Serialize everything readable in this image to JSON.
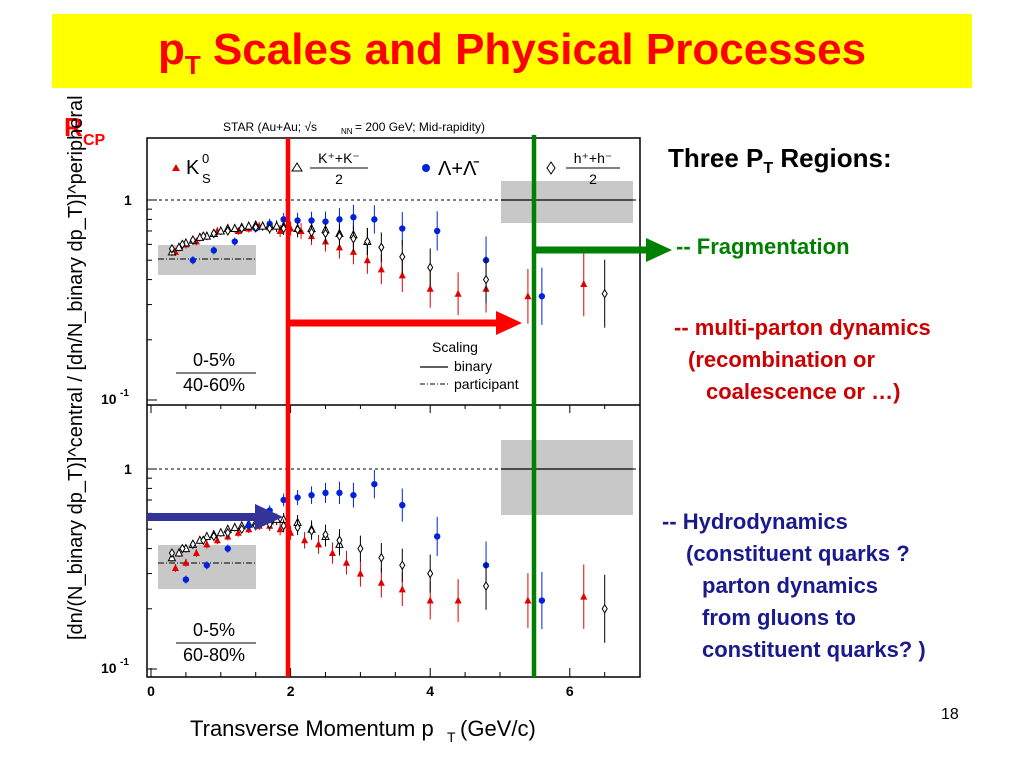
{
  "slide": {
    "title_main": "p",
    "title_sub": "T",
    "title_rest": " Scales and Physical Processes",
    "slide_number": "18"
  },
  "figure": {
    "rcp_main": "R",
    "rcp_sub": "CP",
    "header": "STAR (Au+Au; √s",
    "header_sub": "NN",
    "header_rest": " = 200 GeV; Mid-rapidity)",
    "ylabel": "[dn/(N_binary dp_T)]^central / [dn/N_binary dp_T)]^peripheral",
    "xlabel": "Transverse Momentum p",
    "xlabel_sub": "T",
    "xlabel_rest": " (GeV/c)",
    "legend": {
      "k0s": "K",
      "k0s_sup": "0",
      "k0s_sub": "S",
      "kpm_num": "K⁺+K⁻",
      "kpm_den": "2",
      "lambda": "Λ+Λ̄",
      "hpm_num": "h⁺+h⁻",
      "hpm_den": "2"
    },
    "scaling": {
      "title": "Scaling",
      "binary": "binary",
      "participant": "participant"
    },
    "panel_top_centrality_num": "0-5%",
    "panel_top_centrality_den": "40-60%",
    "panel_bottom_centrality_num": "0-5%",
    "panel_bottom_centrality_den": "60-80%",
    "ytick_1": "1",
    "ytick_low": "10",
    "ytick_low_exp": "-1",
    "xticks": [
      "0",
      "2",
      "4",
      "6"
    ]
  },
  "right_text": {
    "regions_title": "Three P",
    "regions_title_sub": "T",
    "regions_title_rest": " Regions:",
    "fragmentation": "-- Fragmentation",
    "multi_parton": [
      "-- multi-parton dynamics",
      "(recombination or",
      "coalescence or …)"
    ],
    "hydro": [
      "-- Hydrodynamics",
      "(constituent quarks ?",
      "parton dynamics",
      "from gluons to",
      "constituent quarks? )"
    ]
  },
  "colors": {
    "title_bg": "#ffff00",
    "title_text": "#ff0000",
    "k0s": "#e00000",
    "lambda": "#0022dd",
    "fragmentation": "#008000",
    "multi_parton": "#cc0000",
    "hydro": "#1a1a8c",
    "red_line": "#ff0000",
    "green_line": "#008000",
    "blue_arrow": "#333399"
  },
  "chart_data": [
    {
      "type": "scatter",
      "panel": "top",
      "centrality": "0-5% / 40-60%",
      "xlim": [
        0,
        7
      ],
      "ylim": [
        0.1,
        1.8
      ],
      "yscale": "log",
      "series": [
        {
          "name": "K0S",
          "x": [
            0.35,
            0.5,
            0.65,
            0.8,
            0.95,
            1.1,
            1.25,
            1.4,
            1.55,
            1.7,
            1.85,
            2.0,
            2.15,
            2.3,
            2.5,
            2.7,
            2.9,
            3.1,
            3.3,
            3.6,
            4.0,
            4.4,
            4.8,
            5.4,
            6.2
          ],
          "y": [
            0.55,
            0.6,
            0.62,
            0.66,
            0.7,
            0.72,
            0.7,
            0.72,
            0.74,
            0.73,
            0.7,
            0.72,
            0.7,
            0.66,
            0.62,
            0.58,
            0.55,
            0.5,
            0.45,
            0.42,
            0.36,
            0.34,
            0.36,
            0.33,
            0.38
          ]
        },
        {
          "name": "(K+ + K-)/2",
          "x": [
            0.3,
            0.4,
            0.5,
            0.6,
            0.7,
            0.8,
            0.9,
            1.0,
            1.1,
            1.2,
            1.3,
            1.4,
            1.5,
            1.6,
            1.7,
            1.8,
            1.9,
            2.1,
            2.3,
            2.5,
            2.7,
            2.9,
            3.1
          ],
          "y": [
            0.55,
            0.58,
            0.61,
            0.63,
            0.65,
            0.66,
            0.68,
            0.7,
            0.72,
            0.72,
            0.73,
            0.74,
            0.75,
            0.74,
            0.75,
            0.74,
            0.74,
            0.72,
            0.72,
            0.71,
            0.68,
            0.67,
            0.62
          ]
        },
        {
          "name": "Λ+Λbar",
          "x": [
            0.6,
            0.9,
            1.2,
            1.5,
            1.7,
            1.9,
            2.1,
            2.3,
            2.5,
            2.7,
            2.9,
            3.2,
            3.6,
            4.1,
            4.8,
            5.6
          ],
          "y": [
            0.5,
            0.56,
            0.62,
            0.72,
            0.76,
            0.8,
            0.79,
            0.79,
            0.78,
            0.8,
            0.82,
            0.8,
            0.72,
            0.7,
            0.5,
            0.33
          ]
        },
        {
          "name": "(h+ + h-)/2",
          "x": [
            0.3,
            0.45,
            0.6,
            0.75,
            0.9,
            1.1,
            1.3,
            1.5,
            1.7,
            1.9,
            2.1,
            2.3,
            2.5,
            2.7,
            2.9,
            3.1,
            3.3,
            3.6,
            4.0,
            4.8,
            6.5
          ],
          "y": [
            0.57,
            0.6,
            0.63,
            0.66,
            0.68,
            0.7,
            0.72,
            0.73,
            0.72,
            0.72,
            0.71,
            0.69,
            0.68,
            0.66,
            0.64,
            0.62,
            0.58,
            0.52,
            0.46,
            0.4,
            0.34
          ]
        }
      ]
    },
    {
      "type": "scatter",
      "panel": "bottom",
      "centrality": "0-5% / 60-80%",
      "xlim": [
        0,
        7
      ],
      "ylim": [
        0.1,
        1.8
      ],
      "yscale": "log",
      "series": [
        {
          "name": "K0S",
          "x": [
            0.35,
            0.5,
            0.65,
            0.8,
            0.95,
            1.1,
            1.25,
            1.4,
            1.55,
            1.7,
            1.85,
            2.0,
            2.2,
            2.4,
            2.6,
            2.8,
            3.0,
            3.3,
            3.6,
            4.0,
            4.4,
            5.4,
            6.2
          ],
          "y": [
            0.32,
            0.34,
            0.38,
            0.42,
            0.44,
            0.46,
            0.48,
            0.5,
            0.52,
            0.52,
            0.5,
            0.48,
            0.44,
            0.42,
            0.38,
            0.34,
            0.3,
            0.27,
            0.25,
            0.22,
            0.22,
            0.22,
            0.23
          ]
        },
        {
          "name": "(K+ + K-)/2",
          "x": [
            0.3,
            0.4,
            0.5,
            0.6,
            0.7,
            0.8,
            0.9,
            1.0,
            1.1,
            1.2,
            1.3,
            1.4,
            1.5,
            1.6,
            1.7,
            1.8,
            1.9,
            2.1,
            2.3,
            2.5,
            2.7
          ],
          "y": [
            0.36,
            0.38,
            0.4,
            0.42,
            0.44,
            0.46,
            0.47,
            0.48,
            0.5,
            0.51,
            0.52,
            0.53,
            0.54,
            0.55,
            0.55,
            0.56,
            0.56,
            0.54,
            0.5,
            0.46,
            0.42
          ]
        },
        {
          "name": "Λ+Λbar",
          "x": [
            0.5,
            0.8,
            1.1,
            1.4,
            1.7,
            1.9,
            2.1,
            2.3,
            2.5,
            2.7,
            2.9,
            3.2,
            3.6,
            4.1,
            4.8,
            5.6
          ],
          "y": [
            0.28,
            0.33,
            0.4,
            0.52,
            0.62,
            0.7,
            0.72,
            0.74,
            0.76,
            0.76,
            0.74,
            0.84,
            0.66,
            0.46,
            0.33,
            0.22
          ]
        },
        {
          "name": "(h+ + h-)/2",
          "x": [
            0.3,
            0.45,
            0.6,
            0.75,
            0.9,
            1.1,
            1.3,
            1.5,
            1.7,
            1.9,
            2.1,
            2.3,
            2.5,
            2.7,
            3.0,
            3.3,
            3.6,
            4.0,
            4.8,
            6.5
          ],
          "y": [
            0.38,
            0.4,
            0.42,
            0.44,
            0.46,
            0.48,
            0.5,
            0.52,
            0.53,
            0.52,
            0.51,
            0.49,
            0.47,
            0.44,
            0.4,
            0.36,
            0.33,
            0.3,
            0.26,
            0.2
          ]
        }
      ]
    }
  ]
}
